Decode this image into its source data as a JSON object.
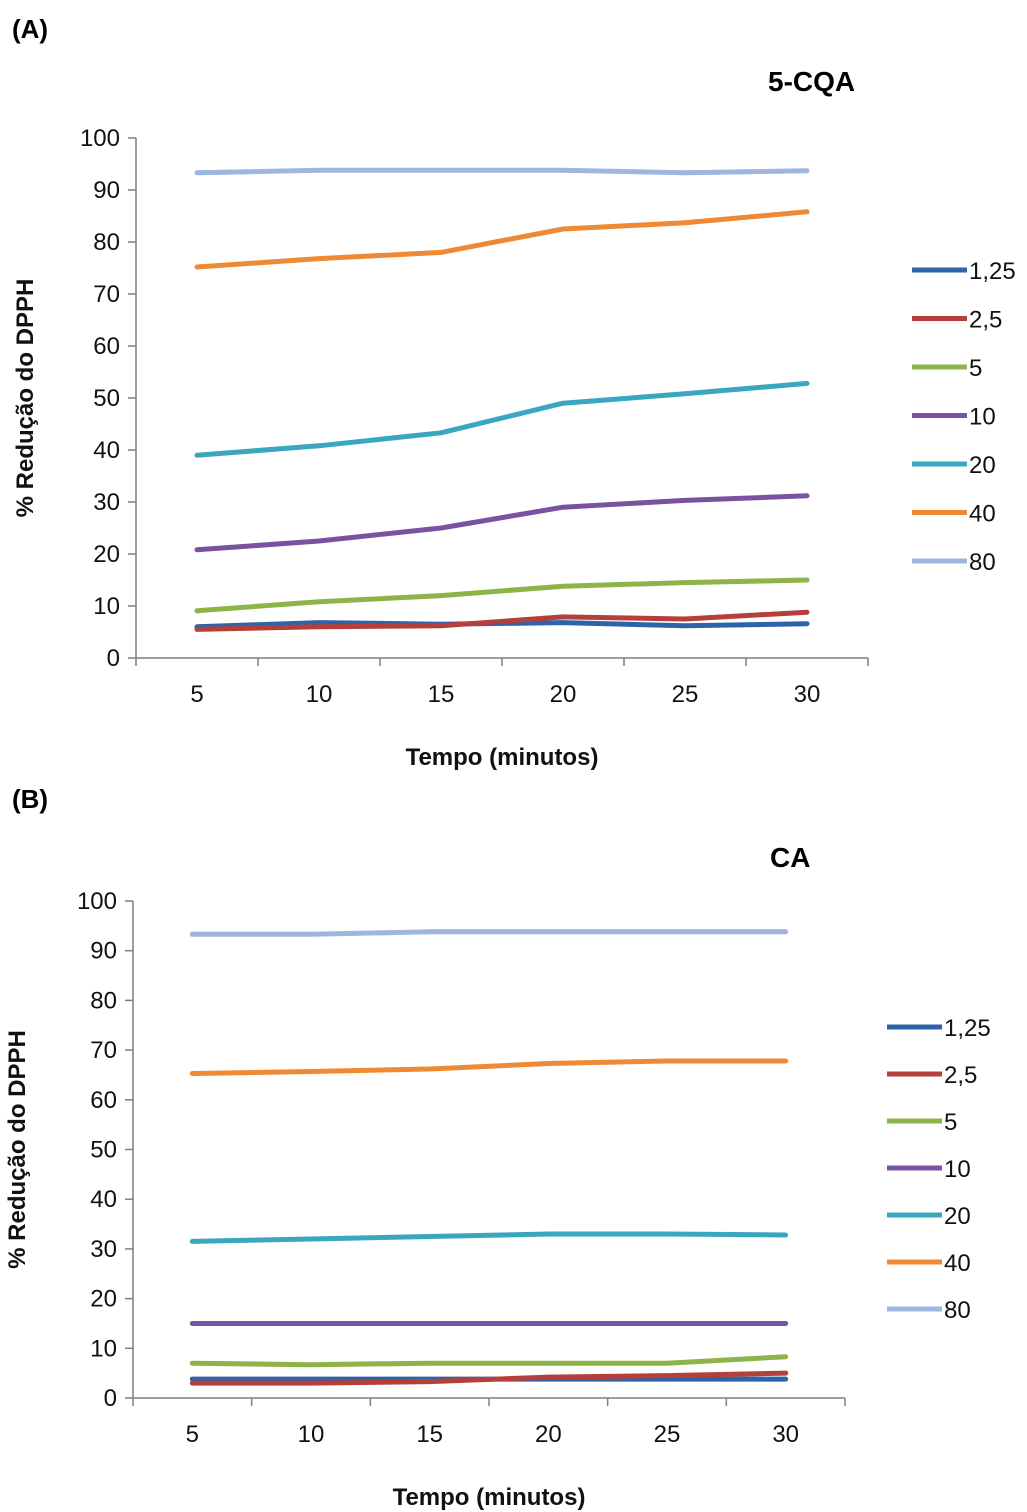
{
  "chart_data": [
    {
      "type": "line",
      "panel_label": "(A)",
      "title": "5-CQA",
      "xlabel": "Tempo (minutos)",
      "ylabel": "% Redução do DPPH",
      "x": [
        5,
        10,
        15,
        20,
        25,
        30
      ],
      "ylim": [
        0,
        100
      ],
      "yticks": [
        0,
        10,
        20,
        30,
        40,
        50,
        60,
        70,
        80,
        90,
        100
      ],
      "legend_position": "right",
      "grid": false,
      "series": [
        {
          "name": "1,25",
          "color": "#2e63a8",
          "values": [
            6,
            6.8,
            6.5,
            6.8,
            6.2,
            6.6
          ]
        },
        {
          "name": "2,5",
          "color": "#b5403b",
          "values": [
            5.5,
            6,
            6.2,
            7.9,
            7.5,
            8.8
          ]
        },
        {
          "name": "5",
          "color": "#8cb448",
          "values": [
            9.1,
            10.8,
            12,
            13.8,
            14.5,
            15
          ]
        },
        {
          "name": "10",
          "color": "#7a53a0",
          "values": [
            20.8,
            22.5,
            25,
            29,
            30.3,
            31.2
          ]
        },
        {
          "name": "20",
          "color": "#3ba6bf",
          "values": [
            39,
            40.8,
            43.3,
            49,
            50.8,
            52.8
          ]
        },
        {
          "name": "40",
          "color": "#ee8a35",
          "values": [
            75.2,
            76.8,
            78,
            82.5,
            83.7,
            85.8
          ]
        },
        {
          "name": "80",
          "color": "#9db5df",
          "values": [
            93.3,
            93.8,
            93.8,
            93.8,
            93.3,
            93.7
          ]
        }
      ]
    },
    {
      "type": "line",
      "panel_label": "(B)",
      "title": "CA",
      "xlabel": "Tempo (minutos)",
      "ylabel": "% Redução do DPPH",
      "x": [
        5,
        10,
        15,
        20,
        25,
        30
      ],
      "ylim": [
        0,
        100
      ],
      "yticks": [
        0,
        10,
        20,
        30,
        40,
        50,
        60,
        70,
        80,
        90,
        100
      ],
      "legend_position": "right",
      "grid": false,
      "series": [
        {
          "name": "1,25",
          "color": "#2e63a8",
          "values": [
            3.8,
            3.8,
            3.8,
            3.8,
            3.8,
            3.8
          ]
        },
        {
          "name": "2,5",
          "color": "#b5403b",
          "values": [
            3,
            3,
            3.3,
            4.2,
            4.5,
            5
          ]
        },
        {
          "name": "5",
          "color": "#8cb448",
          "values": [
            7,
            6.7,
            7,
            7,
            7,
            8.3
          ]
        },
        {
          "name": "10",
          "color": "#7a53a0",
          "values": [
            15,
            15,
            15,
            15,
            15,
            15
          ]
        },
        {
          "name": "20",
          "color": "#3ba6bf",
          "values": [
            31.5,
            32,
            32.5,
            33,
            33,
            32.8
          ]
        },
        {
          "name": "40",
          "color": "#ee8a35",
          "values": [
            65.3,
            65.7,
            66.2,
            67.3,
            67.8,
            67.8
          ]
        },
        {
          "name": "80",
          "color": "#9db5df",
          "values": [
            93.3,
            93.3,
            93.8,
            93.8,
            93.8,
            93.8
          ]
        }
      ]
    }
  ]
}
